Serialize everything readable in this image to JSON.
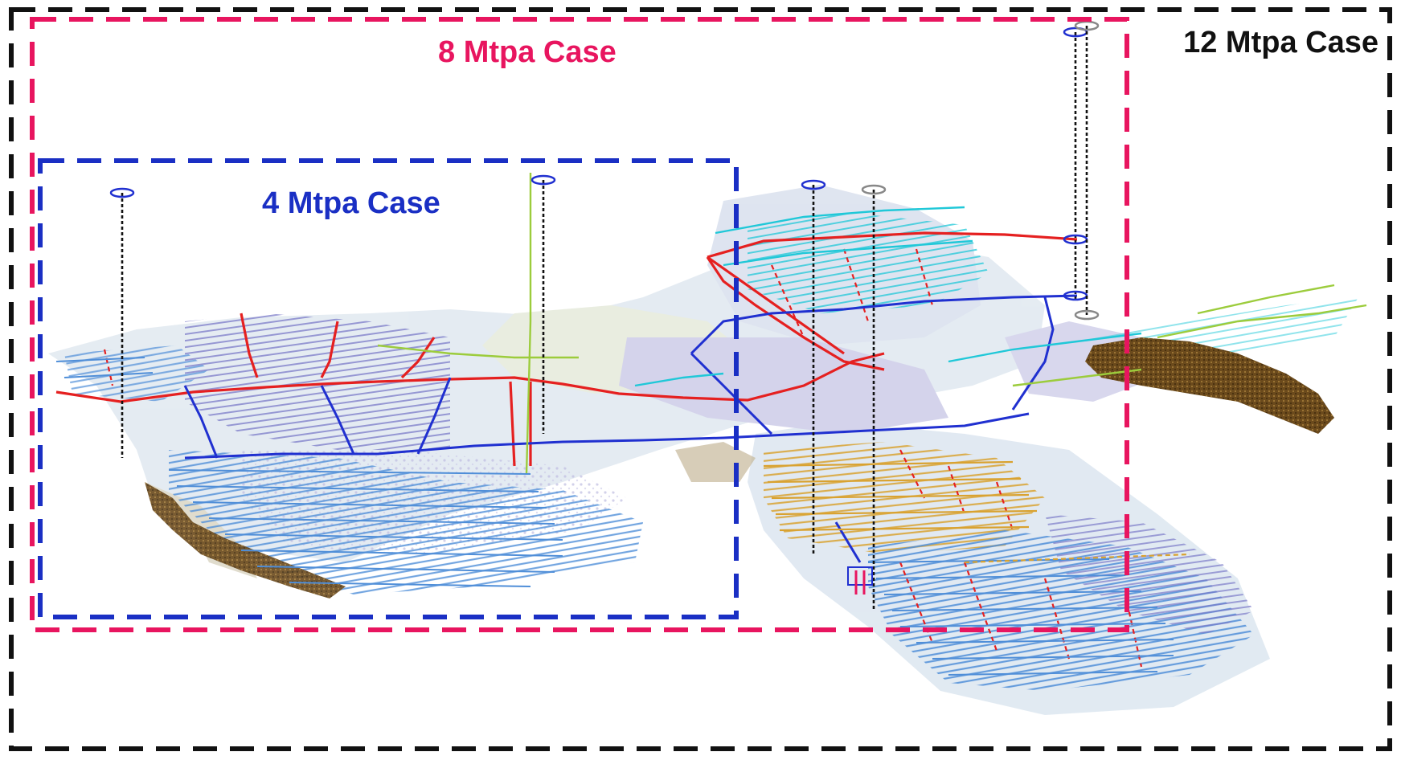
{
  "labels": {
    "case_12": "12 Mtpa Case",
    "case_8": "8 Mtpa Case",
    "case_4": "4 Mtpa Case"
  },
  "colors": {
    "case_12": "#111111",
    "case_8": "#e8155f",
    "case_4": "#1a2fc4",
    "lode_blue": "#4f8ed8",
    "lode_purple": "#7b7bc8",
    "lode_orange": "#d9a230",
    "drive_red": "#e52020",
    "drive_blue": "#2030d0",
    "drive_cyan": "#20c8d8",
    "drive_green": "#9ccc3c",
    "orebody_brown": "#6b4a1c",
    "shaft_black": "#111111"
  },
  "legend_items": []
}
